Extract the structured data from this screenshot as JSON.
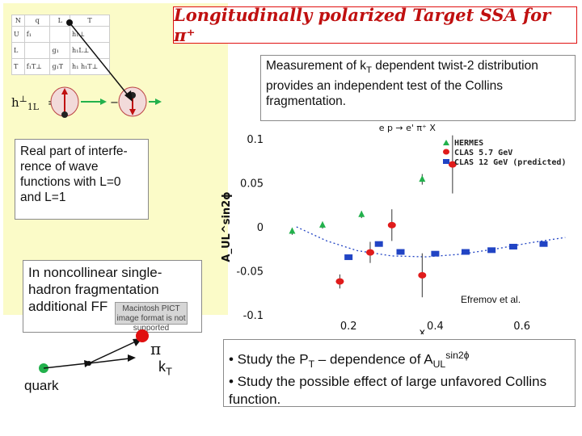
{
  "slide": {
    "title": "Longitudinally  polarized  Target SSA for π⁺",
    "measurement_text_a": "Measurement of k",
    "measurement_sub": "T",
    "measurement_text_b": " dependent twist-2 distribution provides an independent test of the Collins fragmentation.",
    "real_part_text": "Real part of interfe-rence of wave functions with L=0 and L=1",
    "noncollinear_text": "In noncollinear single-hadron fragmentation additional FF",
    "mac_pict_text": "Macintosh PICT image format is not supported",
    "efremov": "Efremov et al.",
    "quark_label": "quark",
    "pi_label": "π",
    "kt_label": "k",
    "kt_sub": "T",
    "bullet1_a": "• Study the P",
    "bullet1_sub": "T",
    "bullet1_b": " – dependence of A",
    "bullet1_sub2": "UL",
    "bullet1_sup": "sin2ϕ",
    "bullet2": "• Study the possible effect of large unfavored Collins function.",
    "h_label": "h",
    "h_sub": "1L",
    "h_sup": "⊥",
    "eq_sign": "="
  },
  "table": {
    "headers": [
      "N",
      "q",
      "L",
      "T"
    ],
    "rows": [
      [
        "U",
        "f₁",
        "",
        "h₁⊥"
      ],
      [
        "L",
        "",
        "g₁",
        "h₁L⊥"
      ],
      [
        "T",
        "f₁T⊥",
        "g₁T",
        "h₁ h₁T⊥"
      ]
    ]
  },
  "chart_data": {
    "type": "scatter",
    "title": "e p → e' π⁺ X",
    "xlabel": "x",
    "ylabel": "A_UL^sin2ϕ",
    "xlim": [
      0.03,
      0.72
    ],
    "ylim": [
      -0.1,
      0.1
    ],
    "xticks": [
      "0.2",
      "0.4",
      "0.6"
    ],
    "xtick_values": [
      0.2,
      0.4,
      0.6
    ],
    "yticks": [
      "0.1",
      "0.05",
      "0",
      "-0.05",
      "-0.1"
    ],
    "ytick_values": [
      0.1,
      0.05,
      0,
      -0.05,
      -0.1
    ],
    "legend": [
      "HERMES",
      "CLAS 5.7 GeV",
      "CLAS 12 GeV (predicted)"
    ],
    "legend_position": "top-right",
    "series": [
      {
        "name": "HERMES",
        "color": "#22b14c",
        "marker": "triangle",
        "points": [
          {
            "x": 0.07,
            "y": -0.005,
            "err": 0.004
          },
          {
            "x": 0.14,
            "y": 0.002,
            "err": 0.004
          },
          {
            "x": 0.23,
            "y": 0.014,
            "err": 0.004
          },
          {
            "x": 0.37,
            "y": 0.054,
            "err": 0.006
          }
        ]
      },
      {
        "name": "CLAS 5.7 GeV",
        "color": "#e01b1b",
        "marker": "circle",
        "points": [
          {
            "x": 0.18,
            "y": -0.062,
            "err": 0.008
          },
          {
            "x": 0.25,
            "y": -0.029,
            "err": 0.012
          },
          {
            "x": 0.3,
            "y": 0.002,
            "err": 0.018
          },
          {
            "x": 0.37,
            "y": -0.055,
            "err": 0.025
          },
          {
            "x": 0.44,
            "y": 0.071,
            "err": 0.033
          }
        ]
      },
      {
        "name": "CLAS 12 GeV (predicted)",
        "color": "#2144c4",
        "marker": "square",
        "points": [
          {
            "x": 0.2,
            "y": -0.034
          },
          {
            "x": 0.27,
            "y": -0.019
          },
          {
            "x": 0.32,
            "y": -0.028
          },
          {
            "x": 0.4,
            "y": -0.03
          },
          {
            "x": 0.47,
            "y": -0.028
          },
          {
            "x": 0.53,
            "y": -0.026
          },
          {
            "x": 0.58,
            "y": -0.022
          },
          {
            "x": 0.65,
            "y": -0.019
          }
        ]
      },
      {
        "name": "",
        "color": "#2144c4",
        "marker": "dashed-curve",
        "points": [
          {
            "x": 0.08,
            "y": 0.0
          },
          {
            "x": 0.15,
            "y": -0.016
          },
          {
            "x": 0.22,
            "y": -0.027
          },
          {
            "x": 0.3,
            "y": -0.033
          },
          {
            "x": 0.38,
            "y": -0.034
          },
          {
            "x": 0.46,
            "y": -0.031
          },
          {
            "x": 0.54,
            "y": -0.025
          },
          {
            "x": 0.62,
            "y": -0.018
          },
          {
            "x": 0.7,
            "y": -0.012
          }
        ]
      }
    ]
  },
  "colors": {
    "title_red": "#c01010",
    "panel_yellow": "#fbfbc8",
    "pi_red": "#e01010",
    "quark_green": "#22b14c"
  }
}
